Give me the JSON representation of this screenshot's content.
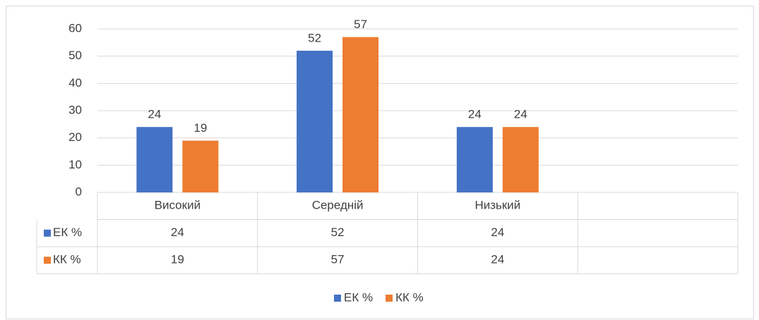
{
  "chart_data": {
    "type": "bar",
    "categories": [
      "Високий",
      "Середній",
      "Низький",
      null
    ],
    "series": [
      {
        "name": "ЕК %",
        "color": "#4472c4",
        "values": [
          24,
          52,
          24,
          null
        ]
      },
      {
        "name": "КК %",
        "color": "#ed7d31",
        "values": [
          19,
          57,
          24,
          null
        ]
      }
    ],
    "ylim": [
      0,
      60
    ],
    "yticks": [
      0,
      10,
      20,
      30,
      40,
      50,
      60
    ],
    "grid": true,
    "data_table": true,
    "legend": "bottom"
  }
}
